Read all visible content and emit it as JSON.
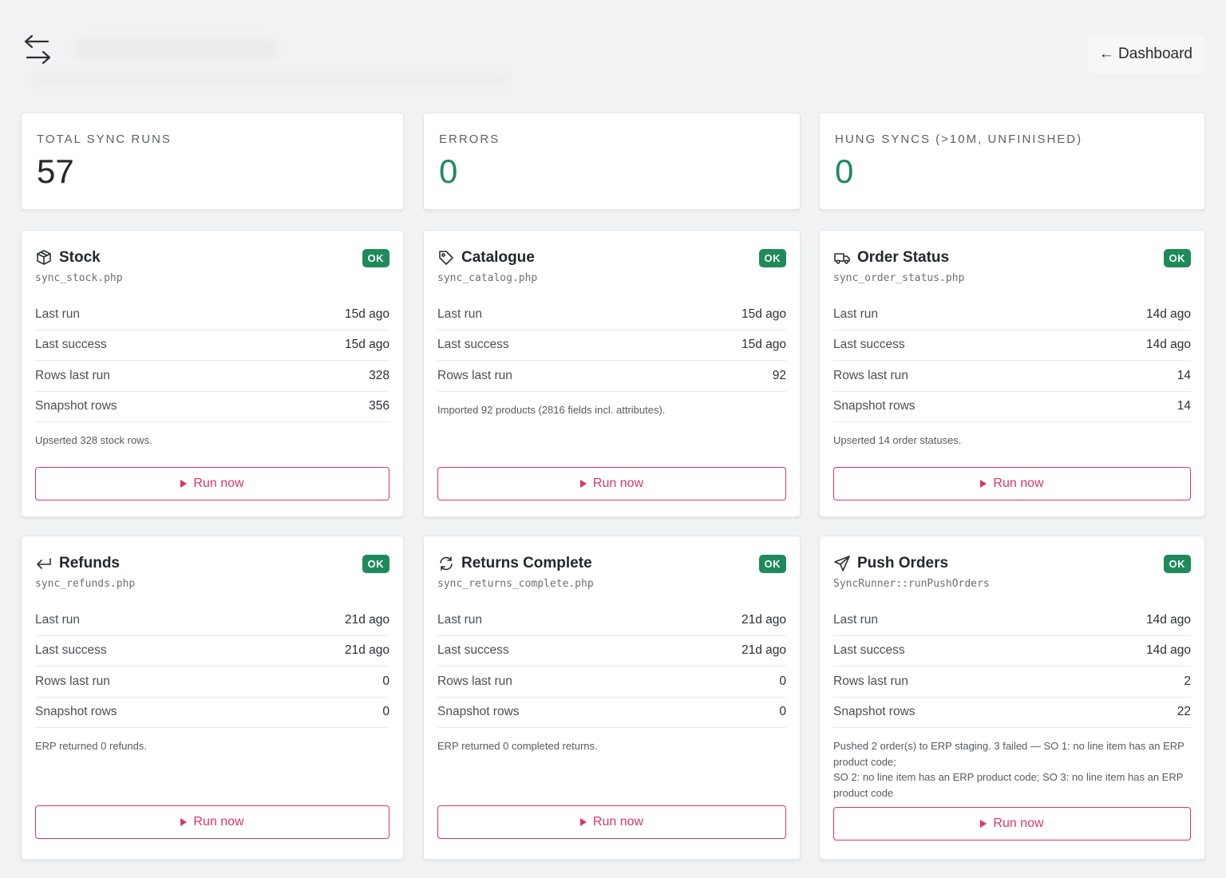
{
  "header": {
    "back_label": "← Dashboard"
  },
  "stats": [
    {
      "label": "TOTAL SYNC RUNS",
      "value": "57",
      "color": "#23272d"
    },
    {
      "label": "ERRORS",
      "value": "0",
      "color": "#1f8a5a"
    },
    {
      "label": "HUNG SYNCS (>10M, UNFINISHED)",
      "value": "0",
      "color": "#1f8a5a"
    }
  ],
  "labels": {
    "last_run": "Last run",
    "last_success": "Last success",
    "rows_last_run": "Rows last run",
    "snapshot_rows": "Snapshot rows",
    "run_now": "Run now"
  },
  "jobs": [
    {
      "title": "Stock",
      "icon": "box-icon",
      "badge": "OK",
      "script": "sync_stock.php",
      "last_run": "15d ago",
      "last_success": "15d ago",
      "rows_last_run": "328",
      "snapshot_rows": "356",
      "note": "Upserted 328 stock rows."
    },
    {
      "title": "Catalogue",
      "icon": "tag-icon",
      "badge": "OK",
      "script": "sync_catalog.php",
      "last_run": "15d ago",
      "last_success": "15d ago",
      "rows_last_run": "92",
      "snapshot_rows": null,
      "note": "Imported 92 products (2816 fields incl. attributes)."
    },
    {
      "title": "Order Status",
      "icon": "truck-icon",
      "badge": "OK",
      "script": "sync_order_status.php",
      "last_run": "14d ago",
      "last_success": "14d ago",
      "rows_last_run": "14",
      "snapshot_rows": "14",
      "note": "Upserted 14 order statuses."
    },
    {
      "title": "Refunds",
      "icon": "return-arrow-icon",
      "badge": "OK",
      "script": "sync_refunds.php",
      "last_run": "21d ago",
      "last_success": "21d ago",
      "rows_last_run": "0",
      "snapshot_rows": "0",
      "note": "ERP returned 0 refunds."
    },
    {
      "title": "Returns Complete",
      "icon": "refresh-icon",
      "badge": "OK",
      "script": "sync_returns_complete.php",
      "last_run": "21d ago",
      "last_success": "21d ago",
      "rows_last_run": "0",
      "snapshot_rows": "0",
      "note": "ERP returned 0 completed returns."
    },
    {
      "title": "Push Orders",
      "icon": "send-icon",
      "badge": "OK",
      "script": "SyncRunner::runPushOrders",
      "last_run": "14d ago",
      "last_success": "14d ago",
      "rows_last_run": "2",
      "snapshot_rows": "22",
      "note": "Pushed 2 order(s) to ERP staging. 3 failed — SO 1: no line item has an ERP product code;",
      "note2": "SO 2: no line item has an ERP product code; SO 3: no line item has an ERP product code"
    }
  ]
}
